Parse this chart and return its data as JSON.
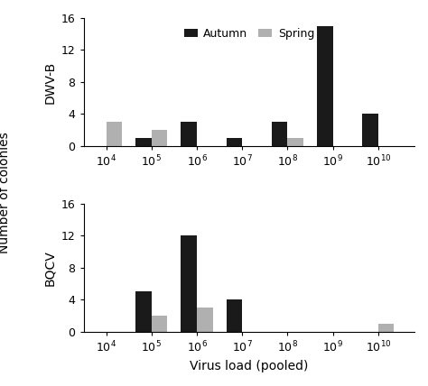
{
  "dwvb_autumn": [
    0,
    1,
    3,
    1,
    3,
    15,
    4
  ],
  "dwvb_spring": [
    3,
    2,
    0,
    0,
    1,
    0,
    0
  ],
  "bqcv_autumn": [
    0,
    5,
    12,
    4,
    0,
    0,
    0
  ],
  "bqcv_spring": [
    0,
    2,
    3,
    0,
    0,
    0,
    1
  ],
  "x_positions": [
    4,
    5,
    6,
    7,
    8,
    9,
    10
  ],
  "x_ticklabels": [
    "10$^4$",
    "10$^5$",
    "10$^6$",
    "10$^7$",
    "10$^8$",
    "10$^9$",
    "10$^{10}$"
  ],
  "ylim": [
    0,
    16
  ],
  "yticks": [
    0,
    4,
    8,
    12,
    16
  ],
  "bar_width": 0.35,
  "autumn_color": "#1a1a1a",
  "spring_color": "#b0b0b0",
  "ylabel": "Number of colonies",
  "xlabel": "Virus load (pooled)",
  "top_ylabel": "DWV-B",
  "bottom_ylabel": "BQCV",
  "legend_labels": [
    "Autumn",
    "Spring"
  ],
  "background_color": "#ffffff"
}
